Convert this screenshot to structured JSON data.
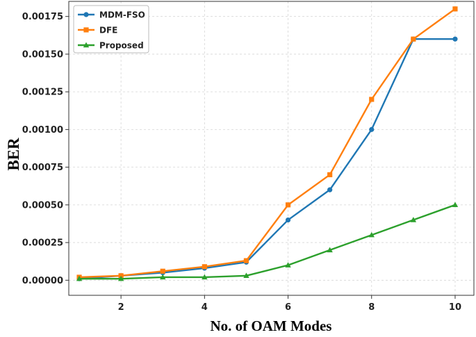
{
  "chart_data": {
    "type": "line",
    "title": "",
    "xlabel": "No. of OAM Modes",
    "ylabel": "BER",
    "x": [
      1,
      2,
      3,
      4,
      5,
      6,
      7,
      8,
      9,
      10
    ],
    "xlim": [
      0.75,
      10.45
    ],
    "ylim": [
      -0.0001,
      0.00185
    ],
    "xticks": [
      2,
      4,
      6,
      8,
      10
    ],
    "xtick_labels": [
      "2",
      "4",
      "6",
      "8",
      "10"
    ],
    "yticks": [
      0,
      0.00025,
      0.0005,
      0.00075,
      0.001,
      0.00125,
      0.0015,
      0.00175
    ],
    "ytick_labels": [
      "0.00000",
      "0.00025",
      "0.00050",
      "0.00075",
      "0.00100",
      "0.00125",
      "0.00150",
      "0.00175"
    ],
    "grid": true,
    "legend_position": "top-left",
    "series": [
      {
        "name": "MDM-FSO",
        "color": "#1f77b4",
        "marker": "circle",
        "values": [
          1e-05,
          3e-05,
          5e-05,
          8e-05,
          0.00012,
          0.0004,
          0.0006,
          0.001,
          0.0016,
          0.0016
        ]
      },
      {
        "name": "DFE",
        "color": "#ff7f0e",
        "marker": "square",
        "values": [
          2e-05,
          3e-05,
          6e-05,
          9e-05,
          0.00013,
          0.0005,
          0.0007,
          0.0012,
          0.0016,
          0.0018
        ]
      },
      {
        "name": "Proposed",
        "color": "#2ca02c",
        "marker": "triangle",
        "values": [
          1e-05,
          1e-05,
          2e-05,
          2e-05,
          3e-05,
          0.0001,
          0.0002,
          0.0003,
          0.0004,
          0.0005
        ]
      }
    ]
  }
}
